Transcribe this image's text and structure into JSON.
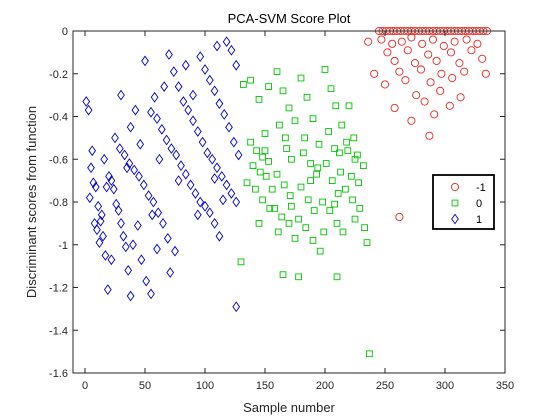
{
  "chart_data": {
    "type": "scatter",
    "title": "PCA-SVM Score Plot",
    "xlabel": "Sample number",
    "ylabel": "Discriminant scores from function",
    "xlim": [
      -10,
      350
    ],
    "ylim": [
      -1.6,
      0
    ],
    "xticks": [
      0,
      50,
      100,
      150,
      200,
      250,
      300,
      350
    ],
    "yticks": [
      0,
      -0.2,
      -0.4,
      -0.6,
      -0.8,
      -1,
      -1.2,
      -1.4,
      -1.6
    ],
    "xtick_labels": [
      "0",
      "50",
      "100",
      "150",
      "200",
      "250",
      "300",
      "350"
    ],
    "ytick_labels": [
      "0",
      "-0.2",
      "-0.4",
      "-0.6",
      "-0.8",
      "-1",
      "-1.2",
      "-1.4",
      "-1.6"
    ],
    "grid": false,
    "legend_position": "right",
    "series": [
      {
        "name": "-1",
        "marker": "circle",
        "color": "#e8251f",
        "points": [
          [
            245,
            0
          ],
          [
            248,
            0
          ],
          [
            251,
            0
          ],
          [
            254,
            0
          ],
          [
            257,
            0
          ],
          [
            260,
            0
          ],
          [
            263,
            0
          ],
          [
            266,
            0
          ],
          [
            269,
            0
          ],
          [
            272,
            0
          ],
          [
            275,
            0
          ],
          [
            278,
            0
          ],
          [
            281,
            0
          ],
          [
            284,
            0
          ],
          [
            287,
            0
          ],
          [
            290,
            0
          ],
          [
            293,
            0
          ],
          [
            296,
            0
          ],
          [
            299,
            0
          ],
          [
            302,
            0
          ],
          [
            305,
            0
          ],
          [
            308,
            0
          ],
          [
            311,
            0
          ],
          [
            314,
            0
          ],
          [
            317,
            0
          ],
          [
            320,
            0
          ],
          [
            323,
            0
          ],
          [
            326,
            0
          ],
          [
            329,
            0
          ],
          [
            332,
            0
          ],
          [
            335,
            0
          ],
          [
            247,
            -0.04
          ],
          [
            256,
            -0.06
          ],
          [
            264,
            -0.05
          ],
          [
            272,
            -0.03
          ],
          [
            281,
            -0.06
          ],
          [
            290,
            -0.04
          ],
          [
            299,
            -0.07
          ],
          [
            308,
            -0.05
          ],
          [
            318,
            -0.04
          ],
          [
            327,
            -0.06
          ],
          [
            252,
            -0.1
          ],
          [
            269,
            -0.09
          ],
          [
            286,
            -0.11
          ],
          [
            305,
            -0.1
          ],
          [
            322,
            -0.09
          ],
          [
            258,
            -0.14
          ],
          [
            275,
            -0.15
          ],
          [
            293,
            -0.14
          ],
          [
            312,
            -0.15
          ],
          [
            331,
            -0.13
          ],
          [
            262,
            -0.19
          ],
          [
            280,
            -0.18
          ],
          [
            297,
            -0.2
          ],
          [
            316,
            -0.19
          ],
          [
            334,
            -0.2
          ],
          [
            241,
            -0.2
          ],
          [
            267,
            -0.23
          ],
          [
            288,
            -0.24
          ],
          [
            306,
            -0.22
          ],
          [
            250,
            -0.25
          ],
          [
            276,
            -0.3
          ],
          [
            296,
            -0.28
          ],
          [
            313,
            -0.31
          ],
          [
            283,
            -0.33
          ],
          [
            304,
            -0.35
          ],
          [
            258,
            -0.36
          ],
          [
            291,
            -0.39
          ],
          [
            272,
            -0.42
          ],
          [
            287,
            -0.49
          ],
          [
            262,
            -0.87
          ],
          [
            236,
            -0.05
          ]
        ]
      },
      {
        "name": "0",
        "marker": "square",
        "color": "#00c400",
        "points": [
          [
            132,
            -0.25
          ],
          [
            138,
            -0.23
          ],
          [
            145,
            -0.32
          ],
          [
            150,
            -0.48
          ],
          [
            138,
            -0.52
          ],
          [
            143,
            -0.56
          ],
          [
            148,
            -0.59
          ],
          [
            153,
            -0.61
          ],
          [
            140,
            -0.63
          ],
          [
            146,
            -0.66
          ],
          [
            151,
            -0.68
          ],
          [
            135,
            -0.71
          ],
          [
            142,
            -0.74
          ],
          [
            148,
            -0.79
          ],
          [
            154,
            -0.83
          ],
          [
            160,
            -0.19
          ],
          [
            165,
            -0.28
          ],
          [
            170,
            -0.36
          ],
          [
            162,
            -0.44
          ],
          [
            168,
            -0.55
          ],
          [
            172,
            -0.6
          ],
          [
            160,
            -0.67
          ],
          [
            166,
            -0.72
          ],
          [
            171,
            -0.77
          ],
          [
            158,
            -0.83
          ],
          [
            164,
            -0.87
          ],
          [
            170,
            -0.9
          ],
          [
            175,
            -0.97
          ],
          [
            180,
            -0.22
          ],
          [
            185,
            -0.31
          ],
          [
            190,
            -0.41
          ],
          [
            183,
            -0.5
          ],
          [
            188,
            -0.62
          ],
          [
            193,
            -0.67
          ],
          [
            180,
            -0.73
          ],
          [
            186,
            -0.79
          ],
          [
            191,
            -0.84
          ],
          [
            178,
            -0.88
          ],
          [
            184,
            -0.92
          ],
          [
            190,
            -0.98
          ],
          [
            196,
            -1.03
          ],
          [
            200,
            -0.18
          ],
          [
            205,
            -0.27
          ],
          [
            209,
            -0.35
          ],
          [
            203,
            -0.47
          ],
          [
            208,
            -0.55
          ],
          [
            212,
            -0.57
          ],
          [
            201,
            -0.62
          ],
          [
            206,
            -0.7
          ],
          [
            211,
            -0.76
          ],
          [
            198,
            -0.8
          ],
          [
            204,
            -0.84
          ],
          [
            210,
            -0.9
          ],
          [
            215,
            -0.94
          ],
          [
            220,
            -0.35
          ],
          [
            224,
            -0.5
          ],
          [
            219,
            -0.56
          ],
          [
            225,
            -0.6
          ],
          [
            222,
            -0.68
          ],
          [
            228,
            -0.71
          ],
          [
            217,
            -0.74
          ],
          [
            223,
            -0.79
          ],
          [
            229,
            -0.83
          ],
          [
            233,
            -0.92
          ],
          [
            235,
            -0.99
          ],
          [
            237,
            -1.51
          ],
          [
            130,
            -1.08
          ],
          [
            165,
            -1.14
          ],
          [
            178,
            -1.15
          ],
          [
            210,
            -1.15
          ],
          [
            153,
            -0.26
          ],
          [
            175,
            -0.42
          ],
          [
            195,
            -0.53
          ],
          [
            213,
            -0.66
          ],
          [
            227,
            -0.58
          ],
          [
            156,
            -0.74
          ],
          [
            172,
            -0.82
          ],
          [
            188,
            -0.7
          ],
          [
            208,
            -0.81
          ],
          [
            218,
            -0.52
          ],
          [
            232,
            -0.63
          ],
          [
            145,
            -0.9
          ],
          [
            161,
            -0.94
          ],
          [
            199,
            -0.94
          ],
          [
            225,
            -0.88
          ],
          [
            150,
            -0.56
          ],
          [
            167,
            -0.5
          ],
          [
            182,
            -0.57
          ],
          [
            194,
            -0.64
          ],
          [
            214,
            -0.44
          ]
        ]
      },
      {
        "name": "1",
        "marker": "diamond",
        "color": "#0000c8",
        "points": [
          [
            1,
            -0.33
          ],
          [
            3,
            -0.37
          ],
          [
            5,
            -0.64
          ],
          [
            7,
            -0.71
          ],
          [
            9,
            -0.73
          ],
          [
            11,
            -0.82
          ],
          [
            13,
            -0.89
          ],
          [
            15,
            -0.96
          ],
          [
            17,
            -1.05
          ],
          [
            19,
            -1.21
          ],
          [
            4,
            -0.78
          ],
          [
            8,
            -0.9
          ],
          [
            12,
            -0.99
          ],
          [
            16,
            -0.6
          ],
          [
            20,
            -0.68
          ],
          [
            22,
            -0.7
          ],
          [
            24,
            -0.74
          ],
          [
            26,
            -0.81
          ],
          [
            28,
            -0.84
          ],
          [
            30,
            -0.9
          ],
          [
            32,
            -0.96
          ],
          [
            34,
            -1.01
          ],
          [
            36,
            -1.12
          ],
          [
            38,
            -1.24
          ],
          [
            25,
            -0.5
          ],
          [
            29,
            -0.55
          ],
          [
            33,
            -0.58
          ],
          [
            37,
            -0.62
          ],
          [
            41,
            -0.65
          ],
          [
            45,
            -0.68
          ],
          [
            49,
            -0.72
          ],
          [
            53,
            -0.77
          ],
          [
            57,
            -0.8
          ],
          [
            61,
            -0.85
          ],
          [
            65,
            -0.9
          ],
          [
            69,
            -0.97
          ],
          [
            47,
            -1.07
          ],
          [
            51,
            -1.17
          ],
          [
            55,
            -1.23
          ],
          [
            50,
            -0.14
          ],
          [
            55,
            -0.38
          ],
          [
            60,
            -0.41
          ],
          [
            64,
            -0.46
          ],
          [
            68,
            -0.51
          ],
          [
            72,
            -0.55
          ],
          [
            76,
            -0.58
          ],
          [
            80,
            -0.63
          ],
          [
            84,
            -0.67
          ],
          [
            88,
            -0.72
          ],
          [
            92,
            -0.76
          ],
          [
            96,
            -0.8
          ],
          [
            100,
            -0.82
          ],
          [
            104,
            -0.85
          ],
          [
            108,
            -0.9
          ],
          [
            112,
            -0.96
          ],
          [
            70,
            -0.11
          ],
          [
            74,
            -0.19
          ],
          [
            78,
            -0.26
          ],
          [
            82,
            -0.33
          ],
          [
            86,
            -0.37
          ],
          [
            90,
            -0.42
          ],
          [
            94,
            -0.47
          ],
          [
            98,
            -0.52
          ],
          [
            102,
            -0.57
          ],
          [
            106,
            -0.6
          ],
          [
            110,
            -0.64
          ],
          [
            114,
            -0.68
          ],
          [
            118,
            -0.72
          ],
          [
            122,
            -0.76
          ],
          [
            126,
            -0.8
          ],
          [
            96,
            -0.12
          ],
          [
            100,
            -0.18
          ],
          [
            104,
            -0.23
          ],
          [
            108,
            -0.28
          ],
          [
            112,
            -0.34
          ],
          [
            116,
            -0.39
          ],
          [
            120,
            -0.45
          ],
          [
            124,
            -0.52
          ],
          [
            128,
            -0.58
          ],
          [
            118,
            -0.05
          ],
          [
            122,
            -0.09
          ],
          [
            126,
            -0.16
          ],
          [
            110,
            -0.07
          ],
          [
            84,
            -0.16
          ],
          [
            66,
            -0.26
          ],
          [
            58,
            -0.31
          ],
          [
            42,
            -0.37
          ],
          [
            38,
            -0.45
          ],
          [
            30,
            -0.3
          ],
          [
            46,
            -0.53
          ],
          [
            62,
            -0.6
          ],
          [
            78,
            -0.7
          ],
          [
            94,
            -0.86
          ],
          [
            75,
            -1.03
          ],
          [
            71,
            -1.13
          ],
          [
            60,
            -1.02
          ],
          [
            40,
            -1.0
          ],
          [
            22,
            -1.07
          ],
          [
            14,
            -0.86
          ],
          [
            10,
            -0.93
          ],
          [
            6,
            -0.56
          ],
          [
            126,
            -1.29
          ],
          [
            108,
            -0.69
          ],
          [
            115,
            -0.79
          ],
          [
            90,
            -0.3
          ],
          [
            56,
            -0.86
          ],
          [
            44,
            -0.91
          ],
          [
            18,
            -0.73
          ],
          [
            35,
            -0.64
          ]
        ]
      }
    ]
  }
}
